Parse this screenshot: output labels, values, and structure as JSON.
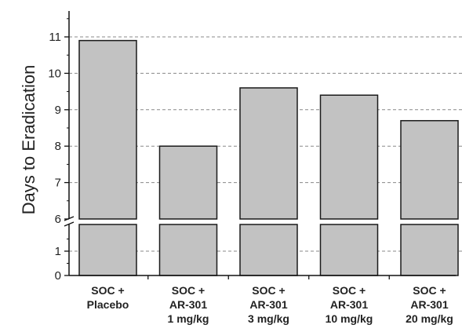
{
  "chart_data": {
    "type": "bar",
    "ylabel": "Days to Eradication",
    "axis_break": {
      "lower": 1.5,
      "upper": 5.9
    },
    "ylim_lower": [
      0,
      1.5
    ],
    "ylim_upper": [
      5.9,
      11.6
    ],
    "y_ticks": [
      0,
      1,
      6,
      7,
      8,
      9,
      10,
      11
    ],
    "grid": "horizontal dashed at 1, 7, 8, 9, 10, 11",
    "categories": [
      [
        "SOC +",
        "Placebo"
      ],
      [
        "SOC +",
        "AR-301",
        "1 mg/kg"
      ],
      [
        "SOC +",
        "AR-301",
        "3 mg/kg"
      ],
      [
        "SOC +",
        "AR-301",
        "10 mg/kg"
      ],
      [
        "SOC +",
        "AR-301",
        "20 mg/kg"
      ]
    ],
    "values": [
      10.9,
      8.0,
      9.6,
      9.4,
      8.7
    ],
    "bar_color": "#c2c2c2",
    "bar_stroke": "#1a1a1a"
  }
}
